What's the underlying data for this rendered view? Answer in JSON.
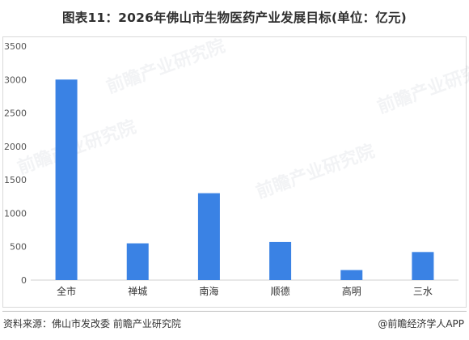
{
  "title": "图表11：2026年佛山市生物医药产业发展目标(单位：亿元)",
  "source": "资料来源：佛山市发改委 前瞻产业研究院",
  "brand": "@前瞻经济学人APP",
  "watermark": "前瞻产业研究院",
  "colors": {
    "bar": "#3a82e4",
    "axis": "#d0d0d0",
    "text": "#333333"
  },
  "chart_data": {
    "type": "bar",
    "title": "图表11：2026年佛山市生物医药产业发展目标(单位：亿元)",
    "xlabel": "",
    "ylabel": "",
    "categories": [
      "全市",
      "禅城",
      "南海",
      "顺德",
      "高明",
      "三水"
    ],
    "values": [
      3000,
      550,
      1300,
      570,
      150,
      420
    ],
    "ylim": [
      0,
      3500
    ],
    "yticks": [
      0,
      500,
      1000,
      1500,
      2000,
      2500,
      3000,
      3500
    ],
    "grid": false,
    "legend": "none"
  }
}
